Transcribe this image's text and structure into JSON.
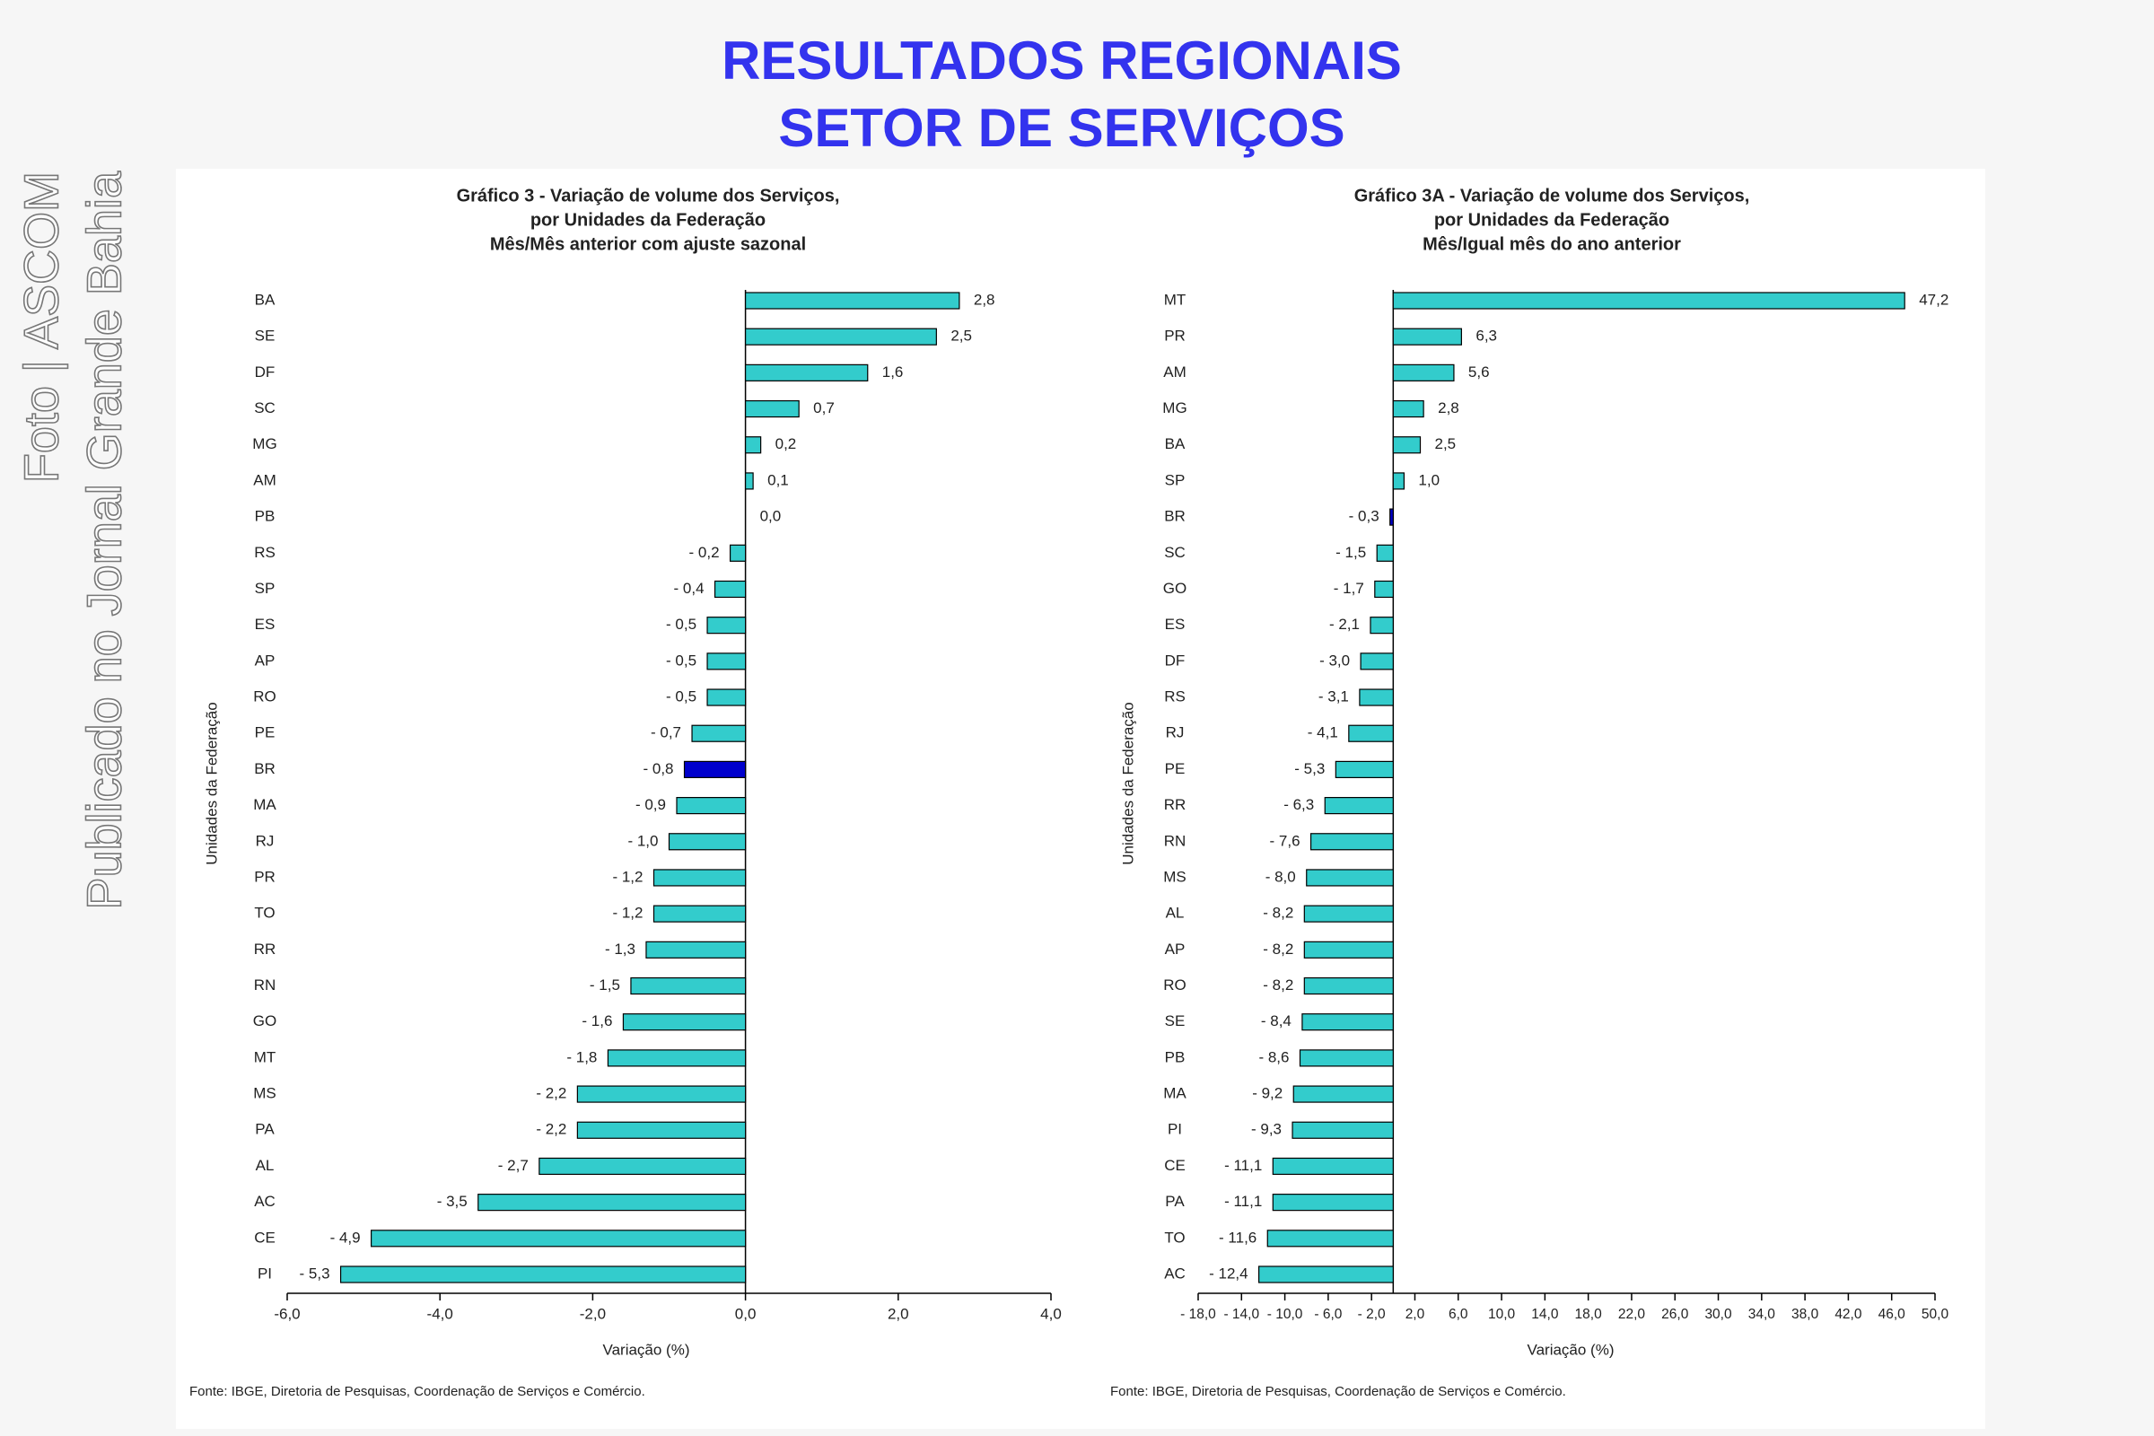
{
  "header": {
    "title_lines": [
      "RESULTADOS REGIONAIS",
      "SETOR DE SERVIÇOS"
    ]
  },
  "watermark": [
    "Foto | ASCOM",
    "Publicado no Jornal Grande Bahia"
  ],
  "chart_data": [
    {
      "type": "barh",
      "title_lines": [
        "Gráfico 3 - Variação de volume dos Serviços,",
        "por Unidades da Federação",
        "Mês/Mês anterior com ajuste sazonal"
      ],
      "x_label": "Variação (%)",
      "y_label": "Unidades da Federação",
      "source": "Fonte: IBGE, Diretoria de Pesquisas, Coordenação de Serviços e Comércio.",
      "categories": [
        "BA",
        "SE",
        "DF",
        "SC",
        "MG",
        "AM",
        "PB",
        "RS",
        "SP",
        "ES",
        "AP",
        "RO",
        "PE",
        "BR",
        "MA",
        "RJ",
        "PR",
        "TO",
        "RR",
        "RN",
        "GO",
        "MT",
        "MS",
        "PA",
        "AL",
        "AC",
        "CE",
        "PI"
      ],
      "values": [
        2.8,
        2.5,
        1.6,
        0.7,
        0.2,
        0.1,
        0.0,
        -0.2,
        -0.4,
        -0.5,
        -0.5,
        -0.5,
        -0.7,
        -0.8,
        -0.9,
        -1.0,
        -1.2,
        -1.2,
        -1.3,
        -1.5,
        -1.6,
        -1.8,
        -2.2,
        -2.2,
        -2.7,
        -3.5,
        -4.9,
        -5.3
      ],
      "value_labels": [
        "2,8",
        "2,5",
        "1,6",
        "0,7",
        "0,2",
        "0,1",
        "0,0",
        "- 0,2",
        "- 0,4",
        "- 0,5",
        "- 0,5",
        "- 0,5",
        "- 0,7",
        "- 0,8",
        "- 0,9",
        "- 1,0",
        "- 1,2",
        "- 1,2",
        "- 1,3",
        "- 1,5",
        "- 1,6",
        "- 1,8",
        "- 2,2",
        "- 2,2",
        "- 2,7",
        "- 3,5",
        "- 4,9",
        "- 5,3"
      ],
      "colors": [
        "#33cccc",
        "#33cccc",
        "#33cccc",
        "#33cccc",
        "#33cccc",
        "#33cccc",
        "#33cccc",
        "#33cccc",
        "#33cccc",
        "#33cccc",
        "#33cccc",
        "#33cccc",
        "#33cccc",
        "#0000cc",
        "#33cccc",
        "#33cccc",
        "#33cccc",
        "#33cccc",
        "#33cccc",
        "#33cccc",
        "#33cccc",
        "#33cccc",
        "#33cccc",
        "#33cccc",
        "#33cccc",
        "#33cccc",
        "#33cccc",
        "#33cccc"
      ],
      "xlim": [
        -6,
        4
      ],
      "xticks": [
        {
          "value": -6,
          "label": "-6,0"
        },
        {
          "value": -4,
          "label": "-4,0"
        },
        {
          "value": -2,
          "label": "-2,0"
        },
        {
          "value": 0,
          "label": "0,0"
        },
        {
          "value": 2,
          "label": "2,0"
        },
        {
          "value": 4,
          "label": "4,0"
        }
      ]
    },
    {
      "type": "barh",
      "title_lines": [
        "Gráfico 3A - Variação de volume dos Serviços,",
        "por Unidades da Federação",
        "Mês/Igual mês do ano anterior"
      ],
      "x_label": "Variação (%)",
      "y_label": "Unidades da Federação",
      "source": "Fonte: IBGE, Diretoria de Pesquisas, Coordenação de Serviços e Comércio.",
      "categories": [
        "MT",
        "PR",
        "AM",
        "MG",
        "BA",
        "SP",
        "BR",
        "SC",
        "GO",
        "ES",
        "DF",
        "RS",
        "RJ",
        "PE",
        "RR",
        "RN",
        "MS",
        "AL",
        "AP",
        "RO",
        "SE",
        "PB",
        "MA",
        "PI",
        "CE",
        "PA",
        "TO",
        "AC"
      ],
      "values": [
        47.2,
        6.3,
        5.6,
        2.8,
        2.5,
        1.0,
        -0.3,
        -1.5,
        -1.7,
        -2.1,
        -3.0,
        -3.1,
        -4.1,
        -5.3,
        -6.3,
        -7.6,
        -8.0,
        -8.2,
        -8.2,
        -8.2,
        -8.4,
        -8.6,
        -9.2,
        -9.3,
        -11.1,
        -11.1,
        -11.6,
        -12.4
      ],
      "value_labels": [
        "47,2",
        "6,3",
        "5,6",
        "2,8",
        "2,5",
        "1,0",
        "- 0,3",
        "- 1,5",
        "- 1,7",
        "- 2,1",
        "- 3,0",
        "- 3,1",
        "- 4,1",
        "- 5,3",
        "- 6,3",
        "- 7,6",
        "- 8,0",
        "- 8,2",
        "- 8,2",
        "- 8,2",
        "- 8,4",
        "- 8,6",
        "- 9,2",
        "- 9,3",
        "- 11,1",
        "- 11,1",
        "- 11,6",
        "- 12,4"
      ],
      "colors": [
        "#33cccc",
        "#33cccc",
        "#33cccc",
        "#33cccc",
        "#33cccc",
        "#33cccc",
        "#0000cc",
        "#33cccc",
        "#33cccc",
        "#33cccc",
        "#33cccc",
        "#33cccc",
        "#33cccc",
        "#33cccc",
        "#33cccc",
        "#33cccc",
        "#33cccc",
        "#33cccc",
        "#33cccc",
        "#33cccc",
        "#33cccc",
        "#33cccc",
        "#33cccc",
        "#33cccc",
        "#33cccc",
        "#33cccc",
        "#33cccc",
        "#33cccc"
      ],
      "xlim": [
        -18,
        50
      ],
      "xticks": [
        {
          "value": -18,
          "label": "- 18,0"
        },
        {
          "value": -14,
          "label": "- 14,0"
        },
        {
          "value": -10,
          "label": "- 10,0"
        },
        {
          "value": -6,
          "label": "- 6,0"
        },
        {
          "value": -2,
          "label": "- 2,0"
        },
        {
          "value": 2,
          "label": "2,0"
        },
        {
          "value": 6,
          "label": "6,0"
        },
        {
          "value": 10,
          "label": "10,0"
        },
        {
          "value": 14,
          "label": "14,0"
        },
        {
          "value": 18,
          "label": "18,0"
        },
        {
          "value": 22,
          "label": "22,0"
        },
        {
          "value": 26,
          "label": "26,0"
        },
        {
          "value": 30,
          "label": "30,0"
        },
        {
          "value": 34,
          "label": "34,0"
        },
        {
          "value": 38,
          "label": "38,0"
        },
        {
          "value": 42,
          "label": "42,0"
        },
        {
          "value": 46,
          "label": "46,0"
        },
        {
          "value": 50,
          "label": "50,0"
        }
      ]
    }
  ]
}
